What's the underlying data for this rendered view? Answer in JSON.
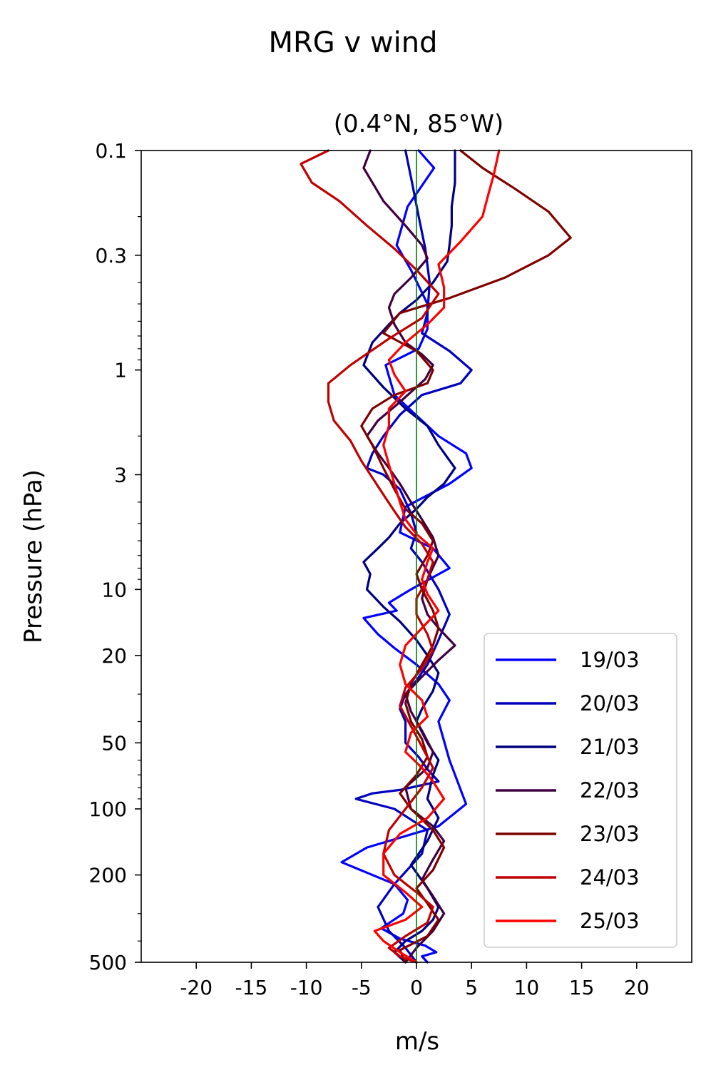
{
  "figure": {
    "title": "MRG v wind"
  },
  "chart_data": {
    "type": "line",
    "title": "(0.4°N, 85°W)",
    "xlabel": "m/s",
    "ylabel": "Pressure (hPa)",
    "xlim": [
      -25,
      25
    ],
    "ylim": [
      500,
      0.1
    ],
    "yscale": "log",
    "x_ticks": [
      -20,
      -15,
      -10,
      -5,
      0,
      5,
      10,
      15,
      20
    ],
    "x_tick_labels": [
      "-20",
      "-15",
      "-10",
      "-5",
      "0",
      "5",
      "10",
      "15",
      "20"
    ],
    "y_ticks": [
      0.1,
      0.3,
      1,
      3,
      10,
      20,
      50,
      100,
      200,
      500
    ],
    "y_tick_labels": [
      "0.1",
      "0.3",
      "1",
      "3",
      "10",
      "20",
      "50",
      "100",
      "200",
      "500"
    ],
    "reference_line": {
      "x": 0,
      "color": "#008000"
    },
    "legend_position": "lower-right",
    "grid": false,
    "series": [
      {
        "name": "19/03",
        "color": "#0000ff",
        "x": [
          0.2,
          1.6,
          -0.8,
          -1.8,
          -0.5,
          1.0,
          1.0,
          0.2,
          -2.8,
          -2.0,
          2.0,
          4.5,
          5.0,
          3.0,
          -1.0,
          -1.5,
          1.5,
          3.0,
          -0.5,
          -2.5,
          -1.8,
          -4.8,
          -3.5,
          -2.0,
          0.0,
          2.0,
          3.0,
          2.0,
          3.0,
          4.5,
          2.0,
          -4.5,
          -6.8,
          -2.0,
          -0.8,
          -1.2,
          -3.2,
          -1.5,
          0.8,
          1.8,
          0.5,
          1.0
        ],
        "p": [
          0.1,
          0.12,
          0.18,
          0.27,
          0.35,
          0.5,
          0.65,
          0.8,
          0.95,
          1.3,
          2.0,
          2.4,
          2.8,
          3.3,
          4.2,
          5.5,
          6.5,
          8.0,
          10.0,
          11.5,
          12.5,
          13.5,
          16.0,
          18.5,
          22.0,
          27.0,
          32.0,
          40.0,
          60.0,
          95.0,
          120.0,
          150.0,
          175.0,
          220.0,
          260.0,
          300.0,
          350.0,
          390.0,
          420.0,
          450.0,
          470.0,
          500.0
        ]
      },
      {
        "name": "20/03",
        "color": "#0000c0",
        "x": [
          -1.0,
          -0.4,
          0.2,
          0.8,
          1.2,
          1.0,
          0.5,
          3.0,
          5.0,
          4.0,
          0.5,
          -1.5,
          -3.0,
          -4.0,
          -4.5,
          -3.0,
          -1.5,
          -0.5,
          0.0,
          -0.5,
          0.5,
          2.0,
          3.0,
          2.0,
          1.0,
          0.0,
          -1.0,
          -1.5,
          -1.0,
          -1.0,
          0.2,
          1.0,
          2.0,
          -1.5,
          -4.0,
          -5.5,
          -2.0,
          1.0,
          0.5,
          -2.0,
          -3.5,
          -2.5,
          -1.0,
          0.0
        ],
        "p": [
          0.1,
          0.14,
          0.2,
          0.28,
          0.4,
          0.55,
          0.68,
          0.82,
          1.0,
          1.15,
          1.3,
          1.6,
          2.0,
          2.4,
          2.8,
          3.0,
          3.5,
          4.5,
          5.5,
          6.5,
          7.5,
          10.0,
          13.0,
          17.0,
          22.0,
          26.0,
          30.0,
          35.0,
          40.0,
          50.0,
          58.0,
          66.0,
          75.0,
          82.0,
          85.0,
          90.0,
          100.0,
          125.0,
          160.0,
          220.0,
          280.0,
          360.0,
          430.0,
          500.0
        ]
      },
      {
        "name": "21/03",
        "color": "#000080",
        "x": [
          3.5,
          3.5,
          3.2,
          3.2,
          3.0,
          2.8,
          1.5,
          0.0,
          -1.5,
          -2.5,
          -4.0,
          -4.8,
          -3.0,
          -1.0,
          1.0,
          2.0,
          3.5,
          2.5,
          1.0,
          0.0,
          -1.5,
          -2.5,
          -3.5,
          -4.8,
          -4.2,
          -4.5,
          -3.0,
          -1.5,
          0.0,
          1.0,
          2.0,
          1.5,
          0.5,
          0.0,
          1.0,
          2.0,
          1.5,
          1.0,
          2.0,
          1.0,
          -0.5,
          1.0,
          2.0,
          1.5,
          0.5,
          -1.0,
          -2.0,
          -1.0
        ],
        "p": [
          0.1,
          0.14,
          0.18,
          0.22,
          0.27,
          0.32,
          0.4,
          0.48,
          0.55,
          0.62,
          0.75,
          0.95,
          1.2,
          1.5,
          1.8,
          2.2,
          2.8,
          3.3,
          3.8,
          4.3,
          5.0,
          5.8,
          6.5,
          7.5,
          8.5,
          10.0,
          12.0,
          14.0,
          17.0,
          20.0,
          24.0,
          29.0,
          35.0,
          40.0,
          50.0,
          60.0,
          70.0,
          90.0,
          110.0,
          140.0,
          180.0,
          230.0,
          280.0,
          320.0,
          360.0,
          400.0,
          450.0,
          500.0
        ]
      },
      {
        "name": "22/03",
        "color": "#400040",
        "x": [
          -4.2,
          -4.8,
          -3.0,
          -1.0,
          0.5,
          1.0,
          -0.5,
          -2.0,
          -2.5,
          -2.0,
          -1.0,
          0.5,
          1.5,
          0.8,
          -1.5,
          -3.5,
          -4.5,
          -3.5,
          -2.5,
          -1.5,
          -0.5,
          0.5,
          1.5,
          2.0,
          1.0,
          0.5,
          1.0,
          2.0,
          3.5,
          2.0,
          0.5,
          -1.0,
          -0.5,
          0.5,
          1.5,
          1.0,
          -1.0,
          -0.5,
          1.5,
          2.5,
          1.5,
          0.5,
          1.5,
          2.5,
          1.5,
          0.0,
          -1.0
        ],
        "p": [
          0.1,
          0.12,
          0.17,
          0.22,
          0.27,
          0.31,
          0.38,
          0.45,
          0.52,
          0.62,
          0.75,
          0.85,
          0.95,
          1.1,
          1.4,
          1.7,
          2.0,
          2.4,
          2.8,
          3.3,
          4.0,
          4.8,
          5.8,
          7.0,
          9.0,
          11.0,
          13.0,
          15.0,
          18.0,
          21.0,
          25.0,
          30.0,
          36.0,
          44.0,
          55.0,
          65.0,
          80.0,
          100.0,
          120.0,
          140.0,
          170.0,
          210.0,
          250.0,
          300.0,
          360.0,
          430.0,
          500.0
        ]
      },
      {
        "name": "23/03",
        "color": "#800000",
        "x": [
          4.0,
          6.0,
          9.0,
          12.0,
          14.0,
          12.0,
          8.0,
          3.0,
          -1.5,
          -3.0,
          0.0,
          1.5,
          1.0,
          -2.0,
          -4.0,
          -5.0,
          -4.0,
          -3.0,
          -2.0,
          -1.0,
          0.5,
          1.5,
          1.0,
          0.0,
          0.5,
          1.5,
          2.0,
          1.5,
          0.5,
          -0.5,
          -1.0,
          -0.5,
          0.5,
          1.0,
          0.0,
          -1.5,
          -0.5,
          1.5,
          2.5,
          1.5,
          0.0,
          1.0,
          2.0,
          1.0,
          -1.5,
          -1.0
        ],
        "p": [
          0.1,
          0.12,
          0.15,
          0.19,
          0.25,
          0.3,
          0.38,
          0.47,
          0.55,
          0.68,
          0.82,
          1.0,
          1.15,
          1.3,
          1.5,
          1.8,
          2.2,
          2.8,
          3.5,
          4.3,
          5.0,
          6.0,
          7.0,
          8.5,
          10.0,
          12.5,
          15.0,
          18.0,
          22.0,
          27.0,
          33.0,
          40.0,
          48.0,
          58.0,
          70.0,
          85.0,
          100.0,
          125.0,
          150.0,
          190.0,
          230.0,
          270.0,
          320.0,
          380.0,
          440.0,
          500.0
        ]
      },
      {
        "name": "24/03",
        "color": "#c00000",
        "x": [
          -8.0,
          -10.5,
          -9.5,
          -7.0,
          -4.5,
          -2.0,
          0.0,
          2.0,
          0.5,
          -2.5,
          -6.0,
          -8.0,
          -8.0,
          -7.5,
          -6.0,
          -5.0,
          -4.0,
          -3.0,
          -2.0,
          -1.0,
          0.5,
          1.5,
          1.0,
          0.0,
          0.0,
          1.0,
          1.5,
          0.5,
          -1.0,
          -1.5,
          -0.5,
          0.5,
          1.5,
          0.5,
          -1.0,
          -2.5,
          -3.0,
          -2.0,
          0.0,
          1.5,
          1.0,
          -1.0,
          -2.5,
          -1.5,
          0.0
        ],
        "p": [
          0.1,
          0.115,
          0.14,
          0.17,
          0.22,
          0.28,
          0.35,
          0.45,
          0.58,
          0.72,
          0.95,
          1.15,
          1.4,
          1.7,
          2.1,
          2.6,
          3.1,
          3.7,
          4.4,
          5.2,
          6.2,
          7.5,
          9.0,
          11.0,
          13.0,
          16.0,
          19.0,
          23.0,
          28.0,
          34.0,
          42.0,
          52.0,
          65.0,
          80.0,
          100.0,
          125.0,
          160.0,
          200.0,
          240.0,
          280.0,
          330.0,
          380.0,
          430.0,
          470.0,
          500.0
        ]
      },
      {
        "name": "25/03",
        "color": "#ff0000",
        "x": [
          7.5,
          7.0,
          6.5,
          6.0,
          4.0,
          2.0,
          2.5,
          2.5,
          1.0,
          -1.0,
          -2.5,
          -2.0,
          -1.0,
          -2.5,
          -2.5,
          -3.0,
          -2.5,
          -2.0,
          -1.5,
          -1.0,
          0.0,
          1.5,
          1.0,
          0.5,
          1.0,
          2.0,
          0.5,
          -1.0,
          -1.5,
          -1.0,
          0.5,
          1.0,
          -0.5,
          -1.0,
          0.5,
          1.5,
          2.5,
          1.0,
          -1.5,
          -3.0,
          -3.0,
          -1.0,
          0.5,
          -1.0,
          -3.8,
          -3.0,
          -1.5,
          0.0
        ],
        "p": [
          0.1,
          0.13,
          0.16,
          0.2,
          0.26,
          0.33,
          0.42,
          0.52,
          0.62,
          0.75,
          0.9,
          1.05,
          1.25,
          1.5,
          1.8,
          2.2,
          2.7,
          3.3,
          4.0,
          4.8,
          5.6,
          6.5,
          7.5,
          9.0,
          10.5,
          12.5,
          15.0,
          18.0,
          22.0,
          27.0,
          32.0,
          38.0,
          45.0,
          55.0,
          65.0,
          75.0,
          90.0,
          110.0,
          130.0,
          160.0,
          200.0,
          240.0,
          280.0,
          320.0,
          360.0,
          400.0,
          450.0,
          500.0
        ]
      }
    ]
  }
}
